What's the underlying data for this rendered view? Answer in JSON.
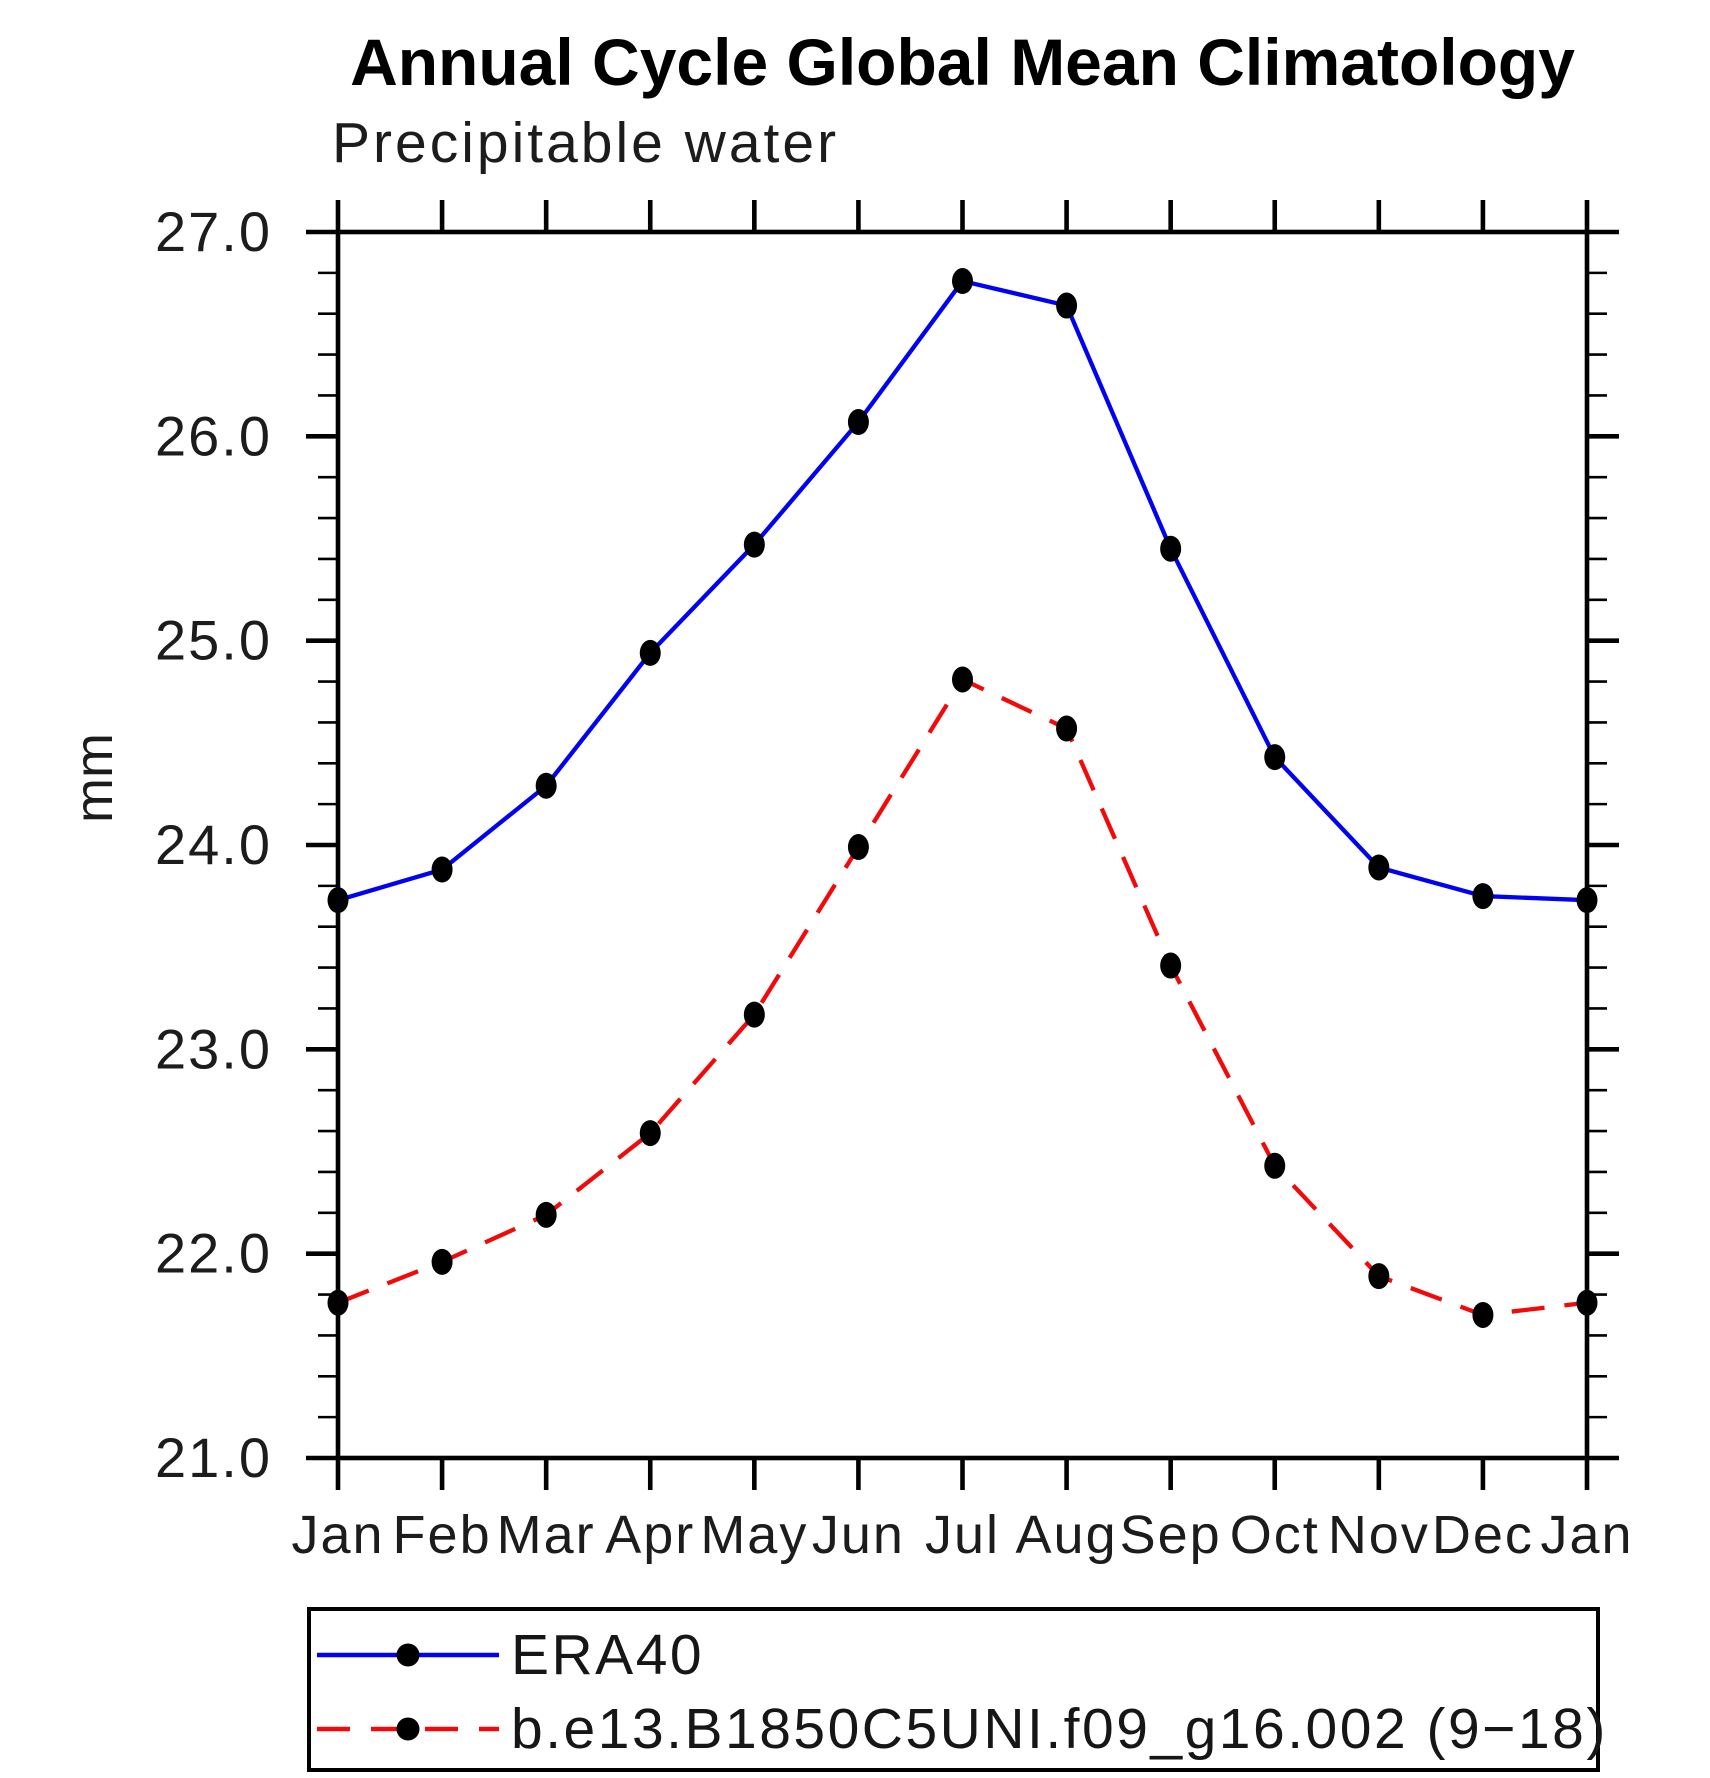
{
  "chart_data": {
    "type": "line",
    "title": "Annual Cycle Global Mean Climatology",
    "subtitle": "Precipitable water",
    "ylabel": "mm",
    "xlabel": "",
    "categories": [
      "Jan",
      "Feb",
      "Mar",
      "Apr",
      "May",
      "Jun",
      "Jul",
      "Aug",
      "Sep",
      "Oct",
      "Nov",
      "Dec",
      "Jan"
    ],
    "ylim": [
      21.0,
      27.0
    ],
    "ytick_step": 1.0,
    "ytick_minor_step": 0.2,
    "ytick_labels": [
      "21.0",
      "22.0",
      "23.0",
      "24.0",
      "25.0",
      "26.0",
      "27.0"
    ],
    "grid": false,
    "legend_position": "bottom",
    "axis_color": "#000000",
    "background_color": "#ffffff",
    "series": [
      {
        "name": "ERA40",
        "color": "#0202f2",
        "line_style": "solid",
        "marker": "filled-circle",
        "marker_color": "#000000",
        "values": [
          23.73,
          23.88,
          24.29,
          24.94,
          25.47,
          26.07,
          26.76,
          26.64,
          25.45,
          24.43,
          23.89,
          23.75,
          23.73
        ]
      },
      {
        "name": "b.e13.B1850C5UNI.f09_g16.002 (9−18)",
        "color": "#f20a0a",
        "line_style": "dashed",
        "marker": "filled-circle",
        "marker_color": "#000000",
        "values": [
          21.76,
          21.96,
          22.19,
          22.59,
          23.17,
          23.99,
          24.81,
          24.57,
          23.41,
          22.43,
          21.89,
          21.7,
          21.76
        ]
      }
    ]
  }
}
